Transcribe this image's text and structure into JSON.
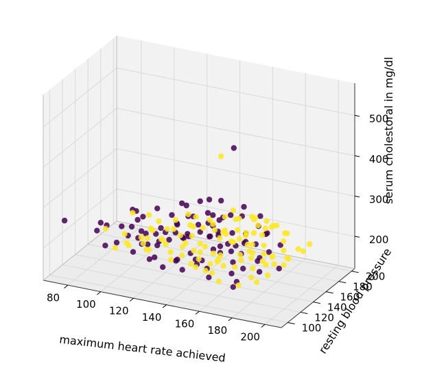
{
  "chart_data": {
    "type": "scatter",
    "projection": "3d",
    "xlabel": "maximum heart rate achieved",
    "ylabel": "resting blood pressure",
    "zlabel": "serum cholestoral in mg/dl",
    "xlim": [
      65,
      210
    ],
    "ylim": [
      90,
      205
    ],
    "zlim": [
      120,
      580
    ],
    "xticks": [
      80,
      100,
      120,
      140,
      160,
      180,
      200
    ],
    "yticks": [
      100,
      120,
      140,
      160,
      180,
      200
    ],
    "zticks": [
      200,
      300,
      400,
      500
    ],
    "grid": true,
    "colors": {
      "class_0": "#440154",
      "class_1": "#fde725",
      "pane": "#f2f2f2",
      "grid": "#d9d9d9"
    },
    "series": [
      {
        "class": "class_0",
        "points": [
          [
            71,
            108,
            250
          ],
          [
            150,
            170,
            415
          ],
          [
            110,
            120,
            290
          ],
          [
            130,
            140,
            300
          ],
          [
            150,
            150,
            310
          ],
          [
            160,
            160,
            290
          ],
          [
            145,
            130,
            330
          ],
          [
            120,
            150,
            250
          ],
          [
            115,
            110,
            240
          ],
          [
            100,
            140,
            260
          ],
          [
            125,
            120,
            260
          ],
          [
            130,
            130,
            240
          ],
          [
            120,
            125,
            235
          ],
          [
            110,
            128,
            230
          ],
          [
            105,
            135,
            245
          ],
          [
            140,
            140,
            255
          ],
          [
            135,
            145,
            265
          ],
          [
            145,
            150,
            270
          ],
          [
            150,
            130,
            280
          ],
          [
            155,
            140,
            285
          ],
          [
            160,
            120,
            270
          ],
          [
            165,
            110,
            260
          ],
          [
            140,
            125,
            245
          ],
          [
            135,
            130,
            230
          ],
          [
            130,
            120,
            235
          ],
          [
            150,
            145,
            240
          ],
          [
            155,
            125,
            225
          ],
          [
            160,
            135,
            230
          ],
          [
            170,
            130,
            220
          ],
          [
            165,
            150,
            240
          ],
          [
            175,
            140,
            235
          ],
          [
            180,
            145,
            260
          ],
          [
            170,
            160,
            275
          ],
          [
            150,
            110,
            215
          ],
          [
            145,
            115,
            220
          ],
          [
            140,
            105,
            210
          ],
          [
            125,
            110,
            200
          ],
          [
            120,
            130,
            210
          ],
          [
            115,
            125,
            205
          ],
          [
            110,
            135,
            215
          ],
          [
            135,
            120,
            190
          ],
          [
            145,
            125,
            180
          ],
          [
            160,
            140,
            205
          ],
          [
            165,
            130,
            195
          ],
          [
            175,
            120,
            200
          ],
          [
            180,
            130,
            210
          ],
          [
            185,
            135,
            230
          ],
          [
            190,
            140,
            245
          ],
          [
            120,
            140,
            220
          ],
          [
            125,
            145,
            240
          ],
          [
            130,
            150,
            255
          ],
          [
            140,
            155,
            265
          ],
          [
            105,
            120,
            225
          ],
          [
            100,
            115,
            210
          ],
          [
            95,
            110,
            205
          ],
          [
            110,
            115,
            195
          ],
          [
            150,
            120,
            200
          ],
          [
            155,
            115,
            190
          ],
          [
            160,
            105,
            185
          ],
          [
            140,
            115,
            175
          ],
          [
            130,
            110,
            180
          ],
          [
            120,
            115,
            185
          ],
          [
            170,
            115,
            190
          ],
          [
            175,
            110,
            180
          ],
          [
            185,
            120,
            200
          ],
          [
            195,
            125,
            210
          ],
          [
            150,
            165,
            255
          ],
          [
            155,
            170,
            250
          ],
          [
            145,
            160,
            245
          ],
          [
            135,
            170,
            275
          ],
          [
            125,
            160,
            265
          ],
          [
            115,
            140,
            275
          ],
          [
            165,
            150,
            220
          ],
          [
            158,
            128,
            215
          ],
          [
            148,
            138,
            235
          ],
          [
            138,
            148,
            225
          ],
          [
            128,
            138,
            248
          ],
          [
            118,
            108,
            230
          ],
          [
            108,
            118,
            252
          ],
          [
            98,
            128,
            232
          ],
          [
            142,
            118,
            262
          ],
          [
            152,
            132,
            272
          ],
          [
            162,
            142,
            218
          ],
          [
            172,
            152,
            262
          ],
          [
            182,
            128,
            222
          ],
          [
            92,
            120,
            240
          ],
          [
            88,
            115,
            230
          ],
          [
            104,
            146,
            238
          ],
          [
            176,
            102,
            178
          ],
          [
            168,
            140,
            232
          ],
          [
            122,
            122,
            212
          ],
          [
            132,
            136,
            222
          ],
          [
            146,
            142,
            228
          ],
          [
            156,
            152,
            232
          ],
          [
            178,
            148,
            252
          ],
          [
            86,
            126,
            234
          ]
        ]
      },
      {
        "class": "class_1",
        "points": [
          [
            150,
            150,
            420
          ],
          [
            165,
            160,
            270
          ],
          [
            170,
            150,
            280
          ],
          [
            160,
            130,
            270
          ],
          [
            150,
            140,
            250
          ],
          [
            155,
            135,
            240
          ],
          [
            165,
            140,
            240
          ],
          [
            170,
            140,
            230
          ],
          [
            175,
            130,
            230
          ],
          [
            180,
            120,
            230
          ],
          [
            185,
            125,
            220
          ],
          [
            190,
            130,
            210
          ],
          [
            160,
            120,
            210
          ],
          [
            155,
            125,
            215
          ],
          [
            145,
            130,
            225
          ],
          [
            175,
            150,
            245
          ],
          [
            180,
            160,
            260
          ],
          [
            170,
            170,
            250
          ],
          [
            165,
            150,
            235
          ],
          [
            160,
            140,
            230
          ],
          [
            175,
            135,
            220
          ],
          [
            180,
            140,
            215
          ],
          [
            185,
            130,
            205
          ],
          [
            190,
            120,
            195
          ],
          [
            195,
            140,
            215
          ],
          [
            200,
            150,
            225
          ],
          [
            170,
            120,
            200
          ],
          [
            165,
            115,
            205
          ],
          [
            160,
            110,
            190
          ],
          [
            155,
            120,
            195
          ],
          [
            150,
            115,
            210
          ],
          [
            145,
            120,
            220
          ],
          [
            140,
            130,
            240
          ],
          [
            135,
            140,
            250
          ],
          [
            130,
            150,
            260
          ],
          [
            125,
            130,
            245
          ],
          [
            120,
            120,
            250
          ],
          [
            115,
            115,
            235
          ],
          [
            110,
            105,
            230
          ],
          [
            105,
            100,
            220
          ],
          [
            120,
            110,
            215
          ],
          [
            130,
            115,
            230
          ],
          [
            140,
            120,
            235
          ],
          [
            150,
            125,
            228
          ],
          [
            160,
            150,
            245
          ],
          [
            168,
            155,
            238
          ],
          [
            178,
            145,
            228
          ],
          [
            188,
            150,
            240
          ],
          [
            200,
            160,
            230
          ],
          [
            195,
            155,
            220
          ],
          [
            185,
            160,
            245
          ],
          [
            175,
            155,
            255
          ],
          [
            165,
            165,
            260
          ],
          [
            155,
            160,
            255
          ],
          [
            145,
            150,
            248
          ],
          [
            135,
            145,
            240
          ],
          [
            125,
            140,
            232
          ],
          [
            115,
            130,
            238
          ],
          [
            102,
            135,
            260
          ],
          [
            110,
            140,
            255
          ],
          [
            172,
            125,
            212
          ],
          [
            182,
            115,
            190
          ],
          [
            178,
            105,
            180
          ],
          [
            168,
            100,
            188
          ],
          [
            158,
            105,
            200
          ],
          [
            148,
            108,
            205
          ],
          [
            138,
            102,
            215
          ],
          [
            162,
            118,
            225
          ],
          [
            152,
            112,
            232
          ],
          [
            142,
            110,
            240
          ],
          [
            132,
            105,
            255
          ],
          [
            122,
            100,
            245
          ],
          [
            190,
            145,
            225
          ],
          [
            194,
            135,
            205
          ],
          [
            186,
            138,
            215
          ],
          [
            176,
            132,
            245
          ],
          [
            166,
            128,
            248
          ],
          [
            156,
            138,
            252
          ],
          [
            146,
            132,
            262
          ],
          [
            136,
            122,
            248
          ],
          [
            126,
            118,
            236
          ],
          [
            116,
            122,
            225
          ],
          [
            106,
            112,
            240
          ],
          [
            96,
            108,
            250
          ],
          [
            198,
            130,
            232
          ],
          [
            192,
            122,
            242
          ],
          [
            184,
            112,
            218
          ],
          [
            174,
            118,
            236
          ],
          [
            164,
            108,
            224
          ],
          [
            154,
            100,
            212
          ],
          [
            144,
            104,
            228
          ],
          [
            134,
            112,
            218
          ],
          [
            124,
            104,
            226
          ],
          [
            114,
            98,
            236
          ],
          [
            160,
            132,
            258
          ],
          [
            170,
            138,
            262
          ],
          [
            180,
            152,
            266
          ],
          [
            150,
            156,
            262
          ],
          [
            140,
            158,
            244
          ],
          [
            130,
            162,
            238
          ],
          [
            120,
            156,
            230
          ],
          [
            112,
            150,
            228
          ],
          [
            184,
            166,
            236
          ],
          [
            174,
            170,
            242
          ],
          [
            164,
            172,
            232
          ],
          [
            154,
            168,
            246
          ],
          [
            148,
            174,
            254
          ],
          [
            188,
            108,
            192
          ]
        ]
      }
    ]
  }
}
